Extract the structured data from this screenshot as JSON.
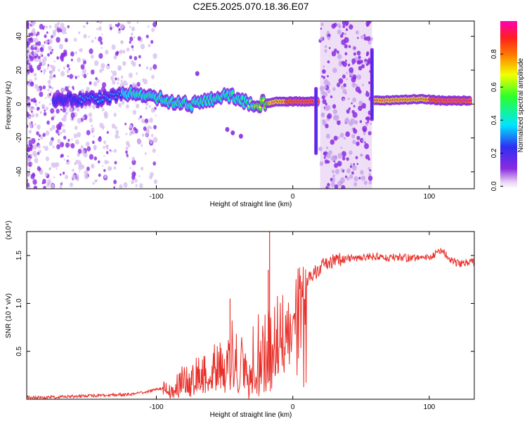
{
  "title": "C2E5.2025.070.18.36.E07",
  "colors": {
    "snr_line": "#e8302a",
    "frame": "#000000",
    "background": "#ffffff",
    "colormap": [
      "#e7d2f2",
      "#8a2be2",
      "#2f2ff0",
      "#00e5ff",
      "#2bff2b",
      "#f4ff00",
      "#ff7a00",
      "#ff1f1f",
      "#ff00b4"
    ]
  },
  "chart_data": [
    {
      "type": "heatmap",
      "name": "spectrogram",
      "xlabel": "Height of straight line (km)",
      "ylabel": "Frequency (Hz)",
      "xlim": [
        -195,
        133
      ],
      "ylim": [
        -50,
        49
      ],
      "x_ticks": [
        -100,
        0,
        100
      ],
      "y_ticks": [
        -40,
        -20,
        0,
        20,
        40
      ],
      "grid": false,
      "colorbar": {
        "label": "Normalized spectral amplitude",
        "range": [
          0,
          1
        ],
        "ticks": [
          "0.0",
          "0.2",
          "0.4",
          "0.6",
          "0.8"
        ]
      },
      "ridge": [
        {
          "x": -175,
          "f": 2,
          "amp": 0.25
        },
        {
          "x": -160,
          "f": 3,
          "amp": 0.3
        },
        {
          "x": -145,
          "f": 3,
          "amp": 0.35
        },
        {
          "x": -130,
          "f": 5,
          "amp": 0.4
        },
        {
          "x": -115,
          "f": 6,
          "amp": 0.45
        },
        {
          "x": -100,
          "f": 3,
          "amp": 0.5
        },
        {
          "x": -85,
          "f": 1,
          "amp": 0.5
        },
        {
          "x": -70,
          "f": 0,
          "amp": 0.55
        },
        {
          "x": -55,
          "f": 4,
          "amp": 0.55
        },
        {
          "x": -45,
          "f": 5,
          "amp": 0.5
        },
        {
          "x": -35,
          "f": 1,
          "amp": 0.55
        },
        {
          "x": -25,
          "f": 0,
          "amp": 0.6
        },
        {
          "x": -10,
          "f": 1.5,
          "amp": 0.9
        },
        {
          "x": 5,
          "f": 1.5,
          "amp": 0.95
        },
        {
          "x": 15,
          "f": 1.5,
          "amp": 0.95
        },
        {
          "x": 65,
          "f": 2,
          "amp": 0.85
        },
        {
          "x": 80,
          "f": 2.5,
          "amp": 0.85
        },
        {
          "x": 95,
          "f": 3,
          "amp": 0.9
        },
        {
          "x": 110,
          "f": 2,
          "amp": 0.95
        },
        {
          "x": 130,
          "f": 2,
          "amp": 0.95
        }
      ],
      "broadband_bands": [
        {
          "x_range": [
            20,
            58
          ],
          "amp": 0.3
        }
      ],
      "spikes": [
        {
          "x": 17,
          "f_range": [
            -30,
            10
          ]
        },
        {
          "x": 58,
          "f_range": [
            -10,
            33
          ]
        }
      ]
    },
    {
      "type": "line",
      "name": "snr",
      "xlabel": "Height of straight line (km)",
      "ylabel": "SNR (10 * v/v)",
      "y_multiplier": "(x10⁴)",
      "xlim": [
        -195,
        133
      ],
      "ylim": [
        0,
        1.75
      ],
      "x_ticks": [
        -100,
        0,
        100
      ],
      "y_ticks": [
        0.5,
        1.0,
        1.5
      ],
      "y_tick_labels": [
        "0.5",
        "1.0",
        "1.5"
      ],
      "grid": false,
      "series": [
        {
          "color": "#e8302a",
          "x": [
            -195,
            -180,
            -160,
            -140,
            -120,
            -110,
            -100,
            -90,
            -80,
            -70,
            -60,
            -50,
            -45,
            -40,
            -35,
            -30,
            -25,
            -20,
            -15,
            -10,
            -5,
            0,
            5,
            10,
            15,
            20,
            25,
            30,
            40,
            50,
            60,
            70,
            80,
            90,
            100,
            105,
            110,
            115,
            120,
            133
          ],
          "y": [
            0.02,
            0.02,
            0.03,
            0.04,
            0.05,
            0.07,
            0.1,
            0.13,
            0.18,
            0.25,
            0.3,
            0.4,
            0.5,
            0.45,
            0.4,
            0.35,
            0.45,
            0.55,
            0.7,
            0.8,
            0.9,
            1.0,
            1.12,
            1.22,
            1.3,
            1.38,
            1.42,
            1.45,
            1.47,
            1.48,
            1.49,
            1.48,
            1.48,
            1.47,
            1.47,
            1.52,
            1.55,
            1.45,
            1.42,
            1.43
          ]
        }
      ],
      "spikes": [
        {
          "x": -17,
          "y": 1.75
        },
        {
          "x": -46,
          "y": 1.05
        },
        {
          "x": -18,
          "y": 1.35
        }
      ]
    }
  ]
}
